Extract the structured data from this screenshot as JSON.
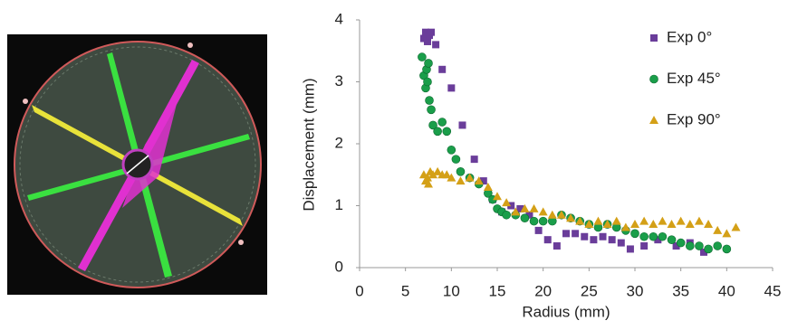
{
  "chart_data": {
    "type": "scatter",
    "x_label": "Radius (mm)",
    "y_label": "Displacement (mm)",
    "xlim": [
      0,
      45
    ],
    "xticks": [
      0,
      5,
      10,
      15,
      20,
      25,
      30,
      35,
      40,
      45
    ],
    "ylim": [
      0,
      4
    ],
    "yticks": [
      0,
      1,
      2,
      3,
      4
    ],
    "grid": false,
    "legend": "upper right",
    "series": [
      {
        "name": "Exp 0°",
        "color": "#6a3d9a",
        "marker": "square",
        "x": [
          7.0,
          7.2,
          7.4,
          7.6,
          7.8,
          8.3,
          9.0,
          10.0,
          11.2,
          12.5,
          13.5,
          14.5,
          15.5,
          16.5,
          17.5,
          18.5,
          19.5,
          20.5,
          21.5,
          22.5,
          23.5,
          24.5,
          25.5,
          26.5,
          27.5,
          28.5,
          29.5,
          31.0,
          32.5,
          34.5,
          36.0,
          37.5
        ],
        "values": [
          3.7,
          3.8,
          3.65,
          3.75,
          3.8,
          3.6,
          3.2,
          2.9,
          2.3,
          1.75,
          1.4,
          1.1,
          0.9,
          1.0,
          0.95,
          0.85,
          0.6,
          0.45,
          0.35,
          0.55,
          0.55,
          0.5,
          0.45,
          0.5,
          0.45,
          0.4,
          0.3,
          0.35,
          0.45,
          0.35,
          0.4,
          0.25
        ]
      },
      {
        "name": "Exp 45°",
        "color": "#1a9e4a",
        "marker": "circle",
        "x": [
          6.8,
          7.0,
          7.2,
          7.3,
          7.4,
          7.5,
          7.6,
          7.8,
          8.0,
          8.5,
          9.0,
          9.5,
          10.0,
          10.5,
          11.0,
          12.0,
          13.0,
          14.0,
          14.5,
          15.0,
          15.5,
          16.0,
          17.0,
          18.0,
          19.0,
          20.0,
          21.0,
          22.0,
          23.0,
          24.0,
          25.0,
          26.0,
          27.0,
          28.0,
          29.0,
          30.0,
          31.0,
          32.0,
          33.0,
          34.0,
          35.0,
          36.0,
          37.0,
          38.0,
          39.0,
          40.0
        ],
        "values": [
          3.4,
          3.1,
          2.9,
          3.2,
          3.0,
          3.3,
          2.7,
          2.55,
          2.3,
          2.2,
          2.35,
          2.2,
          1.9,
          1.75,
          1.55,
          1.45,
          1.35,
          1.2,
          1.1,
          0.95,
          0.9,
          0.85,
          0.85,
          0.8,
          0.75,
          0.75,
          0.75,
          0.85,
          0.8,
          0.75,
          0.7,
          0.65,
          0.7,
          0.65,
          0.6,
          0.55,
          0.5,
          0.5,
          0.5,
          0.45,
          0.4,
          0.35,
          0.35,
          0.3,
          0.35,
          0.3
        ]
      },
      {
        "name": "Exp 90°",
        "color": "#d4a017",
        "marker": "triangle",
        "x": [
          7.0,
          7.2,
          7.4,
          7.5,
          7.7,
          8.0,
          8.5,
          9.0,
          9.5,
          10.0,
          11.0,
          12.0,
          13.0,
          14.0,
          15.0,
          16.0,
          17.0,
          18.0,
          19.0,
          20.0,
          21.0,
          22.0,
          23.0,
          24.0,
          25.0,
          26.0,
          27.0,
          28.0,
          29.0,
          30.0,
          31.0,
          32.0,
          33.0,
          34.0,
          35.0,
          36.0,
          37.0,
          38.0,
          39.0,
          40.0,
          41.0
        ],
        "values": [
          1.5,
          1.4,
          1.45,
          1.35,
          1.55,
          1.5,
          1.55,
          1.5,
          1.5,
          1.45,
          1.4,
          1.45,
          1.4,
          1.3,
          1.15,
          1.05,
          0.9,
          0.95,
          0.95,
          0.9,
          0.85,
          0.85,
          0.8,
          0.75,
          0.7,
          0.75,
          0.7,
          0.75,
          0.65,
          0.7,
          0.75,
          0.7,
          0.75,
          0.7,
          0.75,
          0.7,
          0.75,
          0.7,
          0.6,
          0.55,
          0.65
        ]
      }
    ]
  }
}
